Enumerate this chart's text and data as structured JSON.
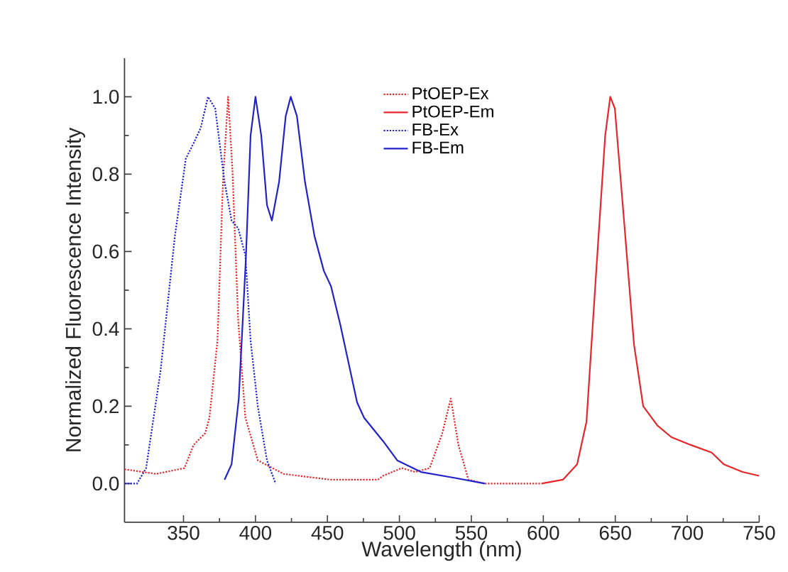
{
  "chart_data": {
    "type": "line",
    "xlabel": "Wavelength (nm)",
    "ylabel": "Normalized Fluorescence Intensity",
    "xlim": [
      309,
      750
    ],
    "ylim": [
      -0.1,
      1.1
    ],
    "xticks": [
      350,
      400,
      450,
      500,
      550,
      600,
      650,
      700,
      750
    ],
    "yticks": [
      {
        "value": 0,
        "label": "0.0"
      },
      0.2,
      0.4,
      0.6,
      0.8,
      {
        "value": 1,
        "label": "1.0"
      }
    ],
    "legend": "top",
    "grid": false,
    "marker": "none",
    "series": [
      {
        "name": "PtOEP-Ex",
        "color": "#e8262a",
        "line_style": "dotted",
        "x": [
          309,
          331,
          350.6,
          357,
          365,
          368,
          373.6,
          377.5,
          381,
          384,
          388,
          393,
          401.6,
          419.6,
          452,
          485,
          488.6,
          501.6,
          511,
          521,
          529.8,
          535.7,
          541,
          548,
          559,
          598.8
        ],
        "values": [
          0.037,
          0.025,
          0.04,
          0.1,
          0.13,
          0.17,
          0.37,
          0.79,
          1.0,
          0.81,
          0.42,
          0.17,
          0.06,
          0.025,
          0.01,
          0.01,
          0.02,
          0.04,
          0.03,
          0.04,
          0.13,
          0.22,
          0.1,
          0.01,
          0.0,
          0.0
        ]
      },
      {
        "name": "PtOEP-Em",
        "color": "#e8262a",
        "line_style": "solid",
        "x": [
          598.8,
          613.6,
          623.5,
          630,
          636.6,
          643,
          646.5,
          649.7,
          656.3,
          663,
          669.4,
          679.3,
          689,
          702.4,
          717,
          725.4,
          738.4,
          750
        ],
        "values": [
          0.0,
          0.01,
          0.05,
          0.16,
          0.54,
          0.9,
          1.0,
          0.97,
          0.67,
          0.36,
          0.2,
          0.15,
          0.12,
          0.1,
          0.08,
          0.05,
          0.03,
          0.02
        ]
      },
      {
        "name": "FB-Ex",
        "color": "#2222cc",
        "line_style": "dotted",
        "x": [
          309,
          317.7,
          324,
          334,
          344,
          351.6,
          357,
          362,
          367,
          372,
          378.5,
          383.4,
          388,
          393,
          396.6,
          401.6,
          408,
          414
        ],
        "values": [
          0.0,
          0.0,
          0.04,
          0.29,
          0.64,
          0.84,
          0.88,
          0.92,
          1.0,
          0.97,
          0.78,
          0.68,
          0.66,
          0.59,
          0.37,
          0.2,
          0.06,
          0.0
        ]
      },
      {
        "name": "FB-Em",
        "color": "#2222cc",
        "line_style": "solid",
        "x": [
          378.5,
          383.4,
          388.4,
          393.3,
          396.6,
          400,
          404,
          408,
          411.4,
          416.4,
          421,
          424.5,
          428.8,
          434.4,
          441,
          447.5,
          452.5,
          459,
          470.6,
          475.5,
          488.6,
          498.5,
          515,
          538,
          559.4
        ],
        "values": [
          0.01,
          0.05,
          0.22,
          0.58,
          0.9,
          1.0,
          0.9,
          0.72,
          0.68,
          0.78,
          0.95,
          1.0,
          0.95,
          0.78,
          0.64,
          0.55,
          0.51,
          0.41,
          0.21,
          0.17,
          0.11,
          0.06,
          0.03,
          0.015,
          0.0
        ]
      }
    ]
  }
}
